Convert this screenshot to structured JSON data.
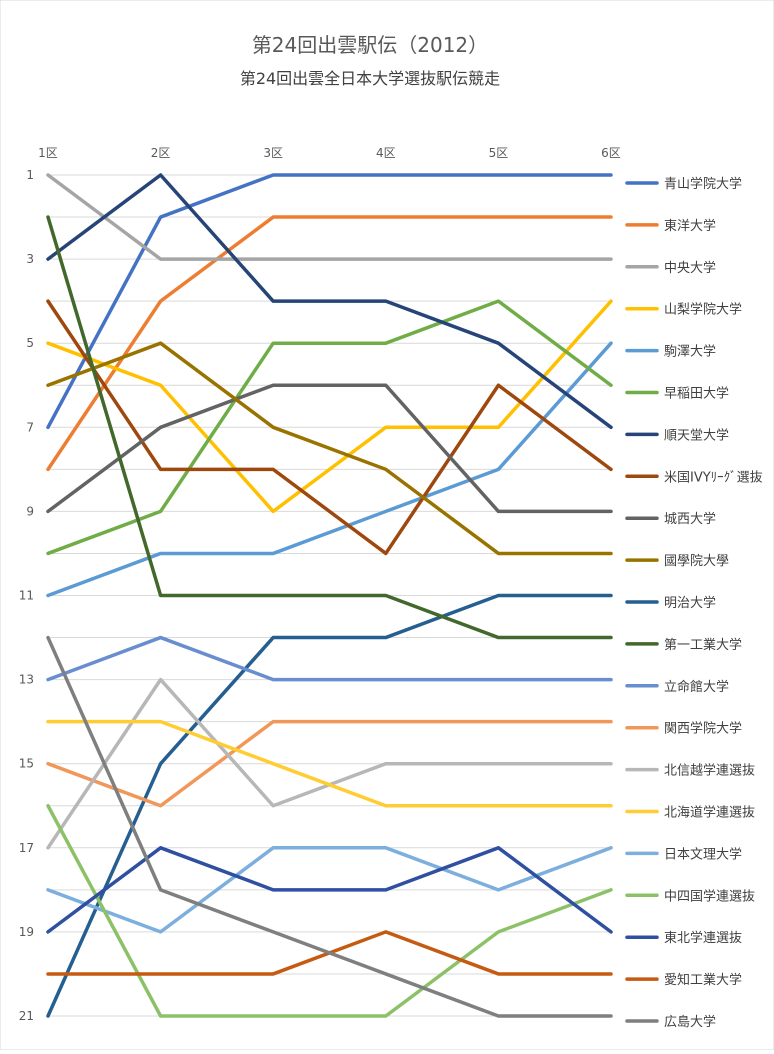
{
  "chart_data": {
    "type": "line",
    "title": "第24回出雲駅伝（2012）",
    "subtitle": "第24回出雲全日本大学選抜駅伝競走",
    "categories": [
      "1区",
      "2区",
      "3区",
      "4区",
      "5区",
      "6区"
    ],
    "y_ticks": [
      "1",
      "3",
      "5",
      "7",
      "9",
      "11",
      "13",
      "15",
      "17",
      "19",
      "21"
    ],
    "ylim": [
      1,
      21
    ],
    "y_reversed": true,
    "grid": true,
    "legend_position": "right",
    "series": [
      {
        "name": "青山学院大学",
        "color": "#4472C4",
        "values": [
          7,
          2,
          1,
          1,
          1,
          1
        ]
      },
      {
        "name": "東洋大学",
        "color": "#ED7D31",
        "values": [
          8,
          4,
          2,
          2,
          2,
          2
        ]
      },
      {
        "name": "中央大学",
        "color": "#A5A5A5",
        "values": [
          1,
          3,
          3,
          3,
          3,
          3
        ]
      },
      {
        "name": "山梨学院大学",
        "color": "#FFC000",
        "values": [
          5,
          6,
          9,
          7,
          7,
          4
        ]
      },
      {
        "name": "駒澤大学",
        "color": "#5B9BD5",
        "values": [
          11,
          10,
          10,
          9,
          8,
          5
        ]
      },
      {
        "name": "早稲田大学",
        "color": "#70AD47",
        "values": [
          10,
          9,
          5,
          5,
          4,
          6
        ]
      },
      {
        "name": "順天堂大学",
        "color": "#264478",
        "values": [
          3,
          1,
          4,
          4,
          5,
          7
        ]
      },
      {
        "name": "米国IVYﾘｰｸﾞ選抜",
        "color": "#9E480E",
        "values": [
          4,
          8,
          8,
          10,
          6,
          8
        ]
      },
      {
        "name": "城西大学",
        "color": "#636363",
        "values": [
          9,
          7,
          6,
          6,
          9,
          9
        ]
      },
      {
        "name": "國學院大學",
        "color": "#997300",
        "values": [
          6,
          5,
          7,
          8,
          10,
          10
        ]
      },
      {
        "name": "明治大学",
        "color": "#255E91",
        "values": [
          21,
          15,
          12,
          12,
          11,
          11
        ]
      },
      {
        "name": "第一工業大学",
        "color": "#43682B",
        "values": [
          2,
          11,
          11,
          11,
          12,
          12
        ]
      },
      {
        "name": "立命館大学",
        "color": "#698ED0",
        "values": [
          13,
          12,
          13,
          13,
          13,
          13
        ]
      },
      {
        "name": "関西学院大学",
        "color": "#F1975A",
        "values": [
          15,
          16,
          14,
          14,
          14,
          14
        ]
      },
      {
        "name": "北信越学連選抜",
        "color": "#B7B7B7",
        "values": [
          17,
          13,
          16,
          15,
          15,
          15
        ]
      },
      {
        "name": "北海道学連選抜",
        "color": "#FFCD33",
        "values": [
          14,
          14,
          15,
          16,
          16,
          16
        ]
      },
      {
        "name": "日本文理大学",
        "color": "#7CAFDD",
        "values": [
          18,
          19,
          17,
          17,
          18,
          17
        ]
      },
      {
        "name": "中四国学連選抜",
        "color": "#8CC168",
        "values": [
          16,
          21,
          21,
          21,
          19,
          18
        ]
      },
      {
        "name": "東北学連選抜",
        "color": "#2F4FA0",
        "values": [
          19,
          17,
          18,
          18,
          17,
          19
        ]
      },
      {
        "name": "愛知工業大学",
        "color": "#C55A11",
        "values": [
          20,
          20,
          20,
          19,
          20,
          20
        ]
      },
      {
        "name": "広島大学",
        "color": "#7F7F7F",
        "values": [
          12,
          18,
          19,
          20,
          21,
          21
        ]
      }
    ]
  }
}
